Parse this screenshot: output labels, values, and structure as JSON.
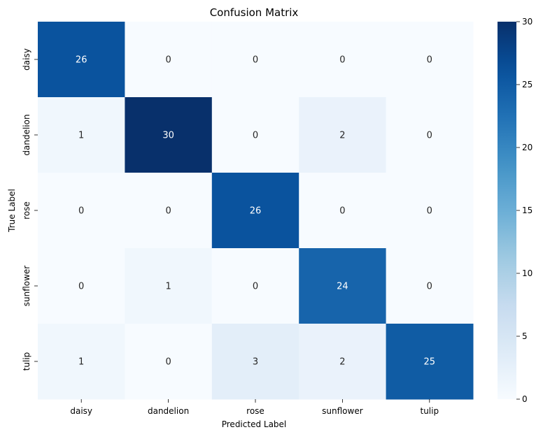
{
  "chart_data": {
    "type": "heatmap",
    "title": "Confusion Matrix",
    "xlabel": "Predicted Label",
    "ylabel": "True Label",
    "x_categories": [
      "daisy",
      "dandelion",
      "rose",
      "sunflower",
      "tulip"
    ],
    "y_categories": [
      "daisy",
      "dandelion",
      "rose",
      "sunflower",
      "tulip"
    ],
    "values": [
      [
        26,
        0,
        0,
        0,
        0
      ],
      [
        1,
        30,
        0,
        2,
        0
      ],
      [
        0,
        0,
        26,
        0,
        0
      ],
      [
        0,
        1,
        0,
        24,
        0
      ],
      [
        1,
        0,
        3,
        2,
        25
      ]
    ],
    "colormap": "Blues",
    "colorbar": {
      "range": [
        0,
        30
      ],
      "ticks": [
        0,
        5,
        10,
        15,
        20,
        25,
        30
      ]
    },
    "annotated": true
  }
}
